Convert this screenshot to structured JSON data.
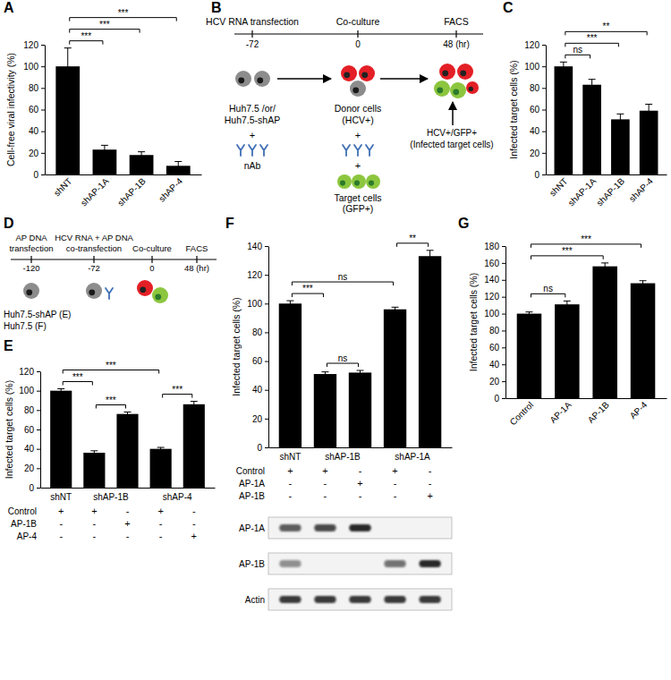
{
  "chart_data": [
    {
      "panel": "A",
      "type": "bar",
      "y_label": "Cell-free viral infectivity (%)",
      "categories": [
        "shNT",
        "shAP-1A",
        "shAP-1B",
        "shAP-4"
      ],
      "values": [
        100,
        23,
        18,
        8
      ],
      "errors": [
        17,
        4,
        3,
        4
      ],
      "color": "#000000",
      "ylim": [
        0,
        120
      ],
      "yticks": [
        0,
        20,
        40,
        60,
        80,
        100,
        120
      ],
      "significance": [
        {
          "from": 0,
          "to": 1,
          "label": "***"
        },
        {
          "from": 0,
          "to": 2,
          "label": "***"
        },
        {
          "from": 0,
          "to": 3,
          "label": "***"
        }
      ]
    },
    {
      "panel": "C",
      "type": "bar",
      "y_label": "Infected target cells (%)",
      "categories": [
        "shNT",
        "shAP-1A",
        "shAP-1B",
        "shAP-4"
      ],
      "values": [
        100,
        83,
        51,
        59
      ],
      "errors": [
        4,
        5,
        5,
        6
      ],
      "color": "#000000",
      "ylim": [
        0,
        120
      ],
      "yticks": [
        0,
        20,
        40,
        60,
        80,
        100,
        120
      ],
      "significance": [
        {
          "from": 0,
          "to": 1,
          "label": "ns"
        },
        {
          "from": 0,
          "to": 2,
          "label": "***"
        },
        {
          "from": 0,
          "to": 3,
          "label": "**"
        }
      ]
    },
    {
      "panel": "E",
      "type": "bar",
      "y_label": "Infected target cells (%)",
      "values": [
        100,
        36,
        76,
        40,
        86
      ],
      "errors": [
        2,
        2,
        2,
        1.5,
        3
      ],
      "color": "#000000",
      "ylim": [
        0,
        120
      ],
      "yticks": [
        0,
        20,
        40,
        60,
        80,
        100,
        120
      ],
      "groups": [
        {
          "label": "shNT",
          "bars": [
            0
          ]
        },
        {
          "label": "shAP-1B",
          "bars": [
            1,
            2
          ]
        },
        {
          "label": "shAP-4",
          "bars": [
            3,
            4
          ]
        }
      ],
      "conditions": [
        {
          "label": "Control",
          "signs": [
            "+",
            "+",
            "-",
            "+",
            "-"
          ]
        },
        {
          "label": "AP-1B",
          "signs": [
            "-",
            "-",
            "+",
            "-",
            "-"
          ]
        },
        {
          "label": "AP-4",
          "signs": [
            "-",
            "-",
            "-",
            "-",
            "+"
          ]
        }
      ],
      "significance": [
        {
          "from": 0,
          "to": 1,
          "label": "***"
        },
        {
          "from": 0,
          "to": 3,
          "label": "***"
        },
        {
          "from": 1,
          "to": 2,
          "label": "***"
        },
        {
          "from": 3,
          "to": 4,
          "label": "***"
        }
      ]
    },
    {
      "panel": "F",
      "type": "bar",
      "y_label": "Infected target cells (%)",
      "values": [
        100,
        51,
        52,
        96,
        133
      ],
      "errors": [
        2,
        1.5,
        1.5,
        1.5,
        4
      ],
      "color": "#000000",
      "ylim": [
        0,
        140
      ],
      "yticks": [
        0,
        20,
        40,
        60,
        80,
        100,
        120,
        140
      ],
      "groups": [
        {
          "label": "shNT",
          "bars": [
            0
          ]
        },
        {
          "label": "shAP-1B",
          "bars": [
            1,
            2
          ]
        },
        {
          "label": "shAP-1A",
          "bars": [
            3,
            4
          ]
        }
      ],
      "conditions": [
        {
          "label": "Control",
          "signs": [
            "+",
            "+",
            "-",
            "+",
            "-"
          ]
        },
        {
          "label": "AP-1A",
          "signs": [
            "-",
            "-",
            "+",
            "-",
            "-"
          ]
        },
        {
          "label": "AP-1B",
          "signs": [
            "-",
            "-",
            "-",
            "-",
            "+"
          ]
        }
      ],
      "significance": [
        {
          "from": 0,
          "to": 1,
          "label": "***"
        },
        {
          "from": 1,
          "to": 2,
          "label": "ns"
        },
        {
          "from": 0,
          "to": 3,
          "label": "ns"
        },
        {
          "from": 3,
          "to": 4,
          "label": "**"
        }
      ],
      "blot": [
        {
          "label": "AP-1A",
          "intensity": [
            0.7,
            0.78,
            0.95,
            0,
            0
          ]
        },
        {
          "label": "AP-1B",
          "intensity": [
            0.45,
            0,
            0,
            0.6,
            0.92
          ]
        },
        {
          "label": "Actin",
          "intensity": [
            0.85,
            0.85,
            0.85,
            0.85,
            0.85
          ]
        }
      ]
    },
    {
      "panel": "G",
      "type": "bar",
      "y_label": "Infected target cells (%)",
      "categories": [
        "Control",
        "AP-1A",
        "AP-1B",
        "AP-4"
      ],
      "values": [
        100,
        111,
        156,
        136
      ],
      "errors": [
        2,
        4,
        4,
        3
      ],
      "color": "#000000",
      "ylim": [
        0,
        180
      ],
      "yticks": [
        0,
        20,
        40,
        60,
        80,
        100,
        120,
        140,
        160,
        180
      ],
      "significance": [
        {
          "from": 0,
          "to": 1,
          "label": "ns"
        },
        {
          "from": 0,
          "to": 2,
          "label": "***"
        },
        {
          "from": 0,
          "to": 3,
          "label": "***"
        }
      ]
    }
  ],
  "diagram_b": {
    "panel": "B",
    "timeline": [
      {
        "tick": "-72",
        "label": "HCV RNA transfection"
      },
      {
        "tick": "0",
        "label": "Co-culture"
      },
      {
        "tick": "48 (hr)",
        "label": "FACS"
      }
    ],
    "start_cells": {
      "lines": [
        "Huh7.5 /or/",
        "Huh7.5-shAP"
      ],
      "plus": "+",
      "antibody": "nAb"
    },
    "donor": {
      "lines": [
        "Donor cells",
        "(HCV+)"
      ],
      "plus": "+"
    },
    "target": {
      "plus": "+",
      "lines": [
        "Target cells",
        "(GFP+)"
      ]
    },
    "readout": {
      "lines": [
        "HCV+/GFP+",
        "(Infected target cells)"
      ]
    }
  },
  "diagram_d": {
    "panel": "D",
    "timeline": [
      {
        "tick": "-120",
        "lines": [
          "AP DNA",
          "transfection"
        ]
      },
      {
        "tick": "-72",
        "lines": [
          "HCV RNA + AP DNA",
          "co-transfection"
        ]
      },
      {
        "tick": "0",
        "lines": [
          "Co-culture"
        ]
      },
      {
        "tick": "48 (hr)",
        "lines": [
          "FACS"
        ]
      }
    ],
    "cell_lines": [
      "Huh7.5-shAP (E)",
      "Huh7.5 (F)"
    ]
  }
}
